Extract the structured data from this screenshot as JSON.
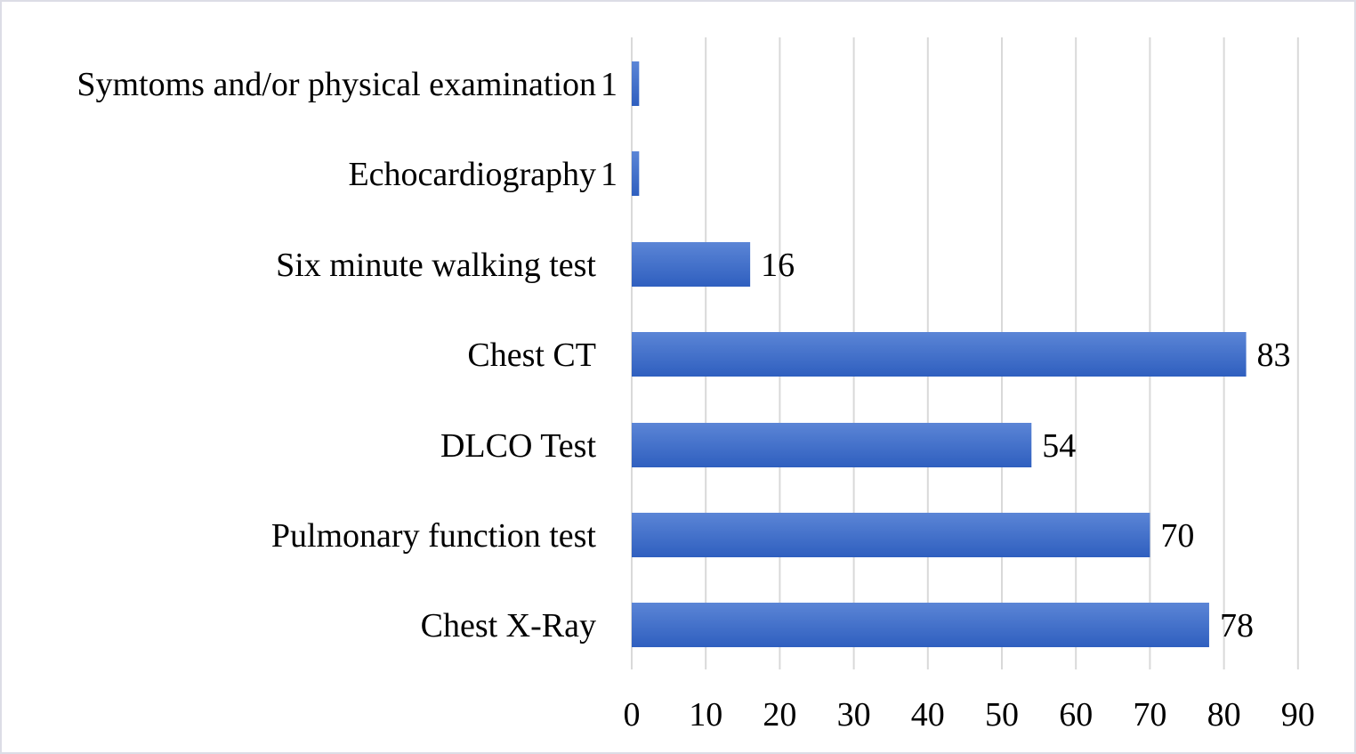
{
  "chart_data": {
    "type": "bar",
    "orientation": "horizontal",
    "categories": [
      "Symtoms and/or physical examination",
      "Echocardiography",
      "Six minute walking test",
      "Chest CT",
      "DLCO Test",
      "Pulmonary function test",
      "Chest X-Ray"
    ],
    "values": [
      1,
      1,
      16,
      83,
      54,
      70,
      78
    ],
    "data_labels": [
      "1",
      "1",
      "16",
      "83",
      "54",
      "70",
      "78"
    ],
    "xlim": [
      0,
      90
    ],
    "x_ticks": [
      0,
      10,
      20,
      30,
      40,
      50,
      60,
      70,
      80,
      90
    ],
    "x_tick_labels": [
      "0",
      "10",
      "20",
      "30",
      "40",
      "50",
      "60",
      "70",
      "80",
      "90"
    ],
    "title": "",
    "xlabel": "",
    "ylabel": "",
    "grid": "vertical",
    "legend": "none",
    "bar_color_top": "#5b85d6",
    "bar_color_bottom": "#2f5fbf",
    "grid_color": "#d9d9d9",
    "border_color": "#dcdde6"
  }
}
